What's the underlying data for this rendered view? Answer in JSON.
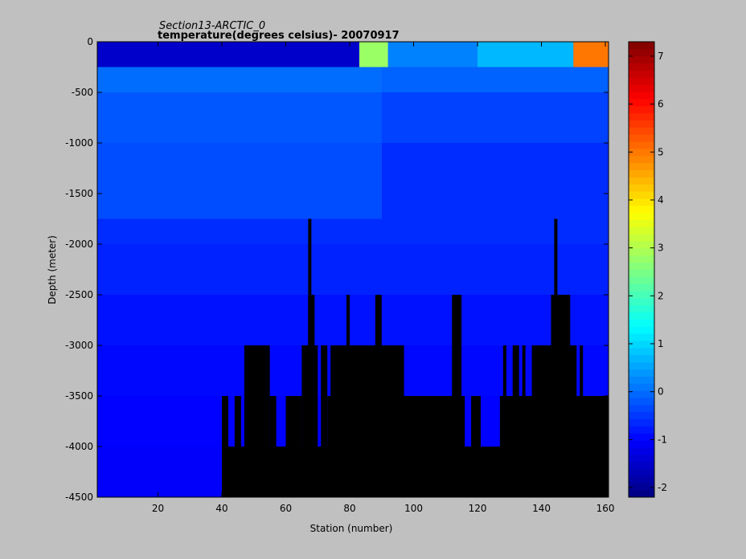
{
  "chart_data": {
    "type": "heatmap",
    "title": "Section13-ARCTIC_0",
    "subtitle": "temperature(degrees  celsius)- 20070917",
    "xlabel": "Station (number)",
    "ylabel": "Depth (meter)",
    "xlim": [
      1,
      161
    ],
    "ylim": [
      -4500,
      0
    ],
    "xticks": [
      20,
      40,
      60,
      80,
      100,
      120,
      140,
      160
    ],
    "yticks": [
      0,
      -500,
      -1000,
      -1500,
      -2000,
      -2500,
      -3000,
      -3500,
      -4000,
      -4500
    ],
    "colorbar": {
      "clim": [
        -2.2,
        7.3
      ],
      "ticks": [
        -2,
        -1,
        0,
        1,
        2,
        3,
        4,
        5,
        6,
        7
      ],
      "colormap": "jet"
    },
    "grid": false,
    "legend": "none",
    "depth_levels": [
      0,
      -250,
      -500,
      -1000,
      -1750,
      -2000,
      -2500,
      -3000,
      -3500,
      -4000,
      -4500
    ],
    "temperature_bands": [
      {
        "x": [
          1,
          40
        ],
        "depth": [
          0,
          -250
        ],
        "value": -1.5
      },
      {
        "x": [
          40,
          83
        ],
        "depth": [
          0,
          -250
        ],
        "value": -1.5
      },
      {
        "x": [
          83,
          92
        ],
        "depth": [
          0,
          -250
        ],
        "value": 2.8
      },
      {
        "x": [
          92,
          120
        ],
        "depth": [
          0,
          -250
        ],
        "value": 0.2
      },
      {
        "x": [
          120,
          150
        ],
        "depth": [
          0,
          -250
        ],
        "value": 0.7
      },
      {
        "x": [
          150,
          161
        ],
        "depth": [
          0,
          -250
        ],
        "value": 5.0
      },
      {
        "x": [
          1,
          90
        ],
        "depth": [
          -250,
          -500
        ],
        "value": 0.0
      },
      {
        "x": [
          90,
          161
        ],
        "depth": [
          -250,
          -500
        ],
        "value": -0.1
      },
      {
        "x": [
          1,
          90
        ],
        "depth": [
          -500,
          -1000
        ],
        "value": -0.2
      },
      {
        "x": [
          90,
          161
        ],
        "depth": [
          -500,
          -1000
        ],
        "value": -0.4
      },
      {
        "x": [
          1,
          90
        ],
        "depth": [
          -1000,
          -1750
        ],
        "value": -0.3
      },
      {
        "x": [
          90,
          161
        ],
        "depth": [
          -1000,
          -1750
        ],
        "value": -0.6
      },
      {
        "x": [
          1,
          161
        ],
        "depth": [
          -1750,
          -2000
        ],
        "value": -0.6
      },
      {
        "x": [
          1,
          161
        ],
        "depth": [
          -2000,
          -2500
        ],
        "value": -0.7
      },
      {
        "x": [
          1,
          161
        ],
        "depth": [
          -2500,
          -3000
        ],
        "value": -0.85
      },
      {
        "x": [
          1,
          161
        ],
        "depth": [
          -3000,
          -3500
        ],
        "value": -0.95
      },
      {
        "x": [
          1,
          161
        ],
        "depth": [
          -3500,
          -4000
        ],
        "value": -1.0
      },
      {
        "x": [
          1,
          161
        ],
        "depth": [
          -4000,
          -4500
        ],
        "value": -1.05
      }
    ],
    "bathymetry": [
      {
        "x": [
          40,
          161
        ],
        "depth_top": -4000
      },
      {
        "x": [
          40,
          42
        ],
        "depth_top": -3500
      },
      {
        "x": [
          44,
          46
        ],
        "depth_top": -3500
      },
      {
        "x": [
          47,
          55
        ],
        "depth_top": -3000
      },
      {
        "x": [
          55,
          57
        ],
        "depth_top": -3500
      },
      {
        "x": [
          60,
          65
        ],
        "depth_top": -3500
      },
      {
        "x": [
          65,
          70
        ],
        "depth_top": -3000
      },
      {
        "x": [
          67,
          69
        ],
        "depth_top": -2500
      },
      {
        "x": [
          67,
          68
        ],
        "depth_top": -1750
      },
      {
        "x": [
          71,
          73
        ],
        "depth_top": -3000
      },
      {
        "x": [
          73,
          116
        ],
        "depth_top": -3500
      },
      {
        "x": [
          74,
          97
        ],
        "depth_top": -3000
      },
      {
        "x": [
          79,
          80
        ],
        "depth_top": -2500
      },
      {
        "x": [
          88,
          90
        ],
        "depth_top": -2500
      },
      {
        "x": [
          112,
          115
        ],
        "depth_top": -2500
      },
      {
        "x": [
          118,
          121
        ],
        "depth_top": -3500
      },
      {
        "x": [
          127,
          161
        ],
        "depth_top": -3500
      },
      {
        "x": [
          128,
          129
        ],
        "depth_top": -3000
      },
      {
        "x": [
          131,
          133
        ],
        "depth_top": -3000
      },
      {
        "x": [
          134,
          135
        ],
        "depth_top": -3000
      },
      {
        "x": [
          137,
          151
        ],
        "depth_top": -3000
      },
      {
        "x": [
          143,
          149
        ],
        "depth_top": -2500
      },
      {
        "x": [
          144,
          145
        ],
        "depth_top": -1750
      },
      {
        "x": [
          152,
          153
        ],
        "depth_top": -3000
      }
    ]
  }
}
